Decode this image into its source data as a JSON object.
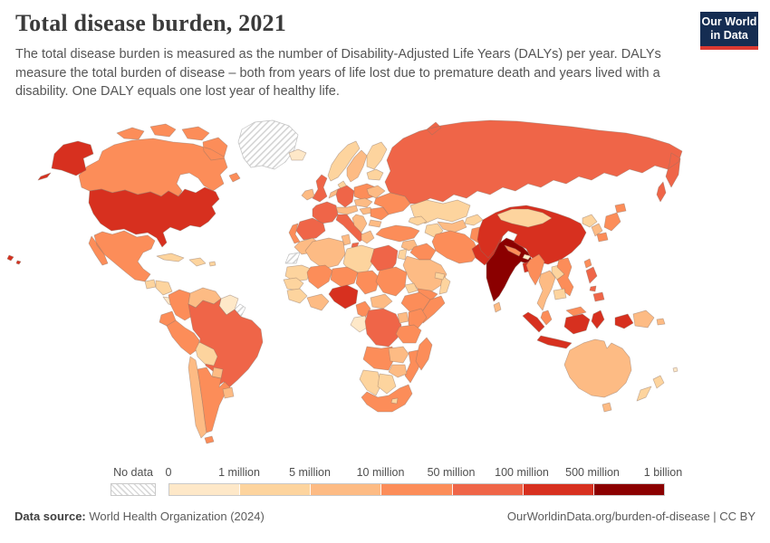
{
  "header": {
    "title": "Total disease burden, 2021",
    "subtitle": "The total disease burden is measured as the number of Disability-Adjusted Life Years (DALYs) per year. DALYs measure the total burden of disease – both from years of life lost due to premature death and years lived with a disability. One DALY equals one lost year of healthy life.",
    "logo": {
      "line1": "Our World",
      "line2": "in Data",
      "bg_color": "#152d52",
      "stripe_color": "#dc3a32"
    }
  },
  "chart_data": {
    "type": "choropleth",
    "subtype": "world-map",
    "title": "Total disease burden, 2021",
    "metric": "Disability-Adjusted Life Years (DALYs) per year",
    "year": 2021,
    "legend": {
      "no_data_label": "No data",
      "tick_labels": [
        "0",
        "1 million",
        "5 million",
        "10 million",
        "50 million",
        "100 million",
        "500 million",
        "1 billion"
      ],
      "bin_ranges": [
        "0–1 million",
        "1–5 million",
        "5–10 million",
        "10–50 million",
        "50–100 million",
        "100–500 million",
        "500 million–1 billion"
      ],
      "bin_colors": [
        "#fee8c8",
        "#fdd49e",
        "#fdbb84",
        "#fc8d59",
        "#ef6548",
        "#d7301f",
        "#8b0000"
      ],
      "no_data_fill": "hatched",
      "position": "bottom"
    },
    "countries": {
      "russia": 5,
      "canada": 4,
      "united-states": 6,
      "greenland": "no-data",
      "iceland": 1,
      "mexico": 4,
      "guatemala": 2,
      "honduras-nicaragua": 2,
      "costa-rica-panama": 1,
      "cuba": 2,
      "hispaniola": 2,
      "puerto-rico": 2,
      "colombia": 4,
      "venezuela": 3,
      "guyana-suriname": 1,
      "french-guiana": "no-data",
      "brazil": 5,
      "ecuador": 4,
      "peru": 4,
      "bolivia": 2,
      "paraguay": 3,
      "chile": 3,
      "argentina": 4,
      "uruguay": 3,
      "norway": 2,
      "sweden": 3,
      "finland": 2,
      "baltic-states": 2,
      "denmark": 2,
      "united-kingdom": 5,
      "ireland": 3,
      "france": 5,
      "spain": 5,
      "portugal": 4,
      "germany": 5,
      "benelux": 3,
      "alpine-states": 3,
      "italy": 5,
      "poland": 4,
      "czechia-slovakia": 3,
      "hungary": 3,
      "romania": 4,
      "bulgaria": 3,
      "balkans": 3,
      "greece": 3,
      "ukraine": 4,
      "belarus": 3,
      "kazakhstan": 2,
      "uzbekistan": 3,
      "turkmenistan": 2,
      "kyrgyzstan-tajikistan": 2,
      "caucasus": 2,
      "turkey": 4,
      "syria": 3,
      "iraq": 4,
      "iran": 4,
      "saudi-arabia": 3,
      "jordan-israel": 2,
      "yemen": 4,
      "oman": 2,
      "uae-qatar": 2,
      "afghanistan": 4,
      "pakistan": 6,
      "india": 7,
      "nepal": 4,
      "bhutan": 1,
      "bangladesh": 6,
      "sri-lanka": 3,
      "china": 6,
      "mongolia": 2,
      "taiwan": 4,
      "north-korea": 2,
      "south-korea": 3,
      "japan": 4,
      "myanmar": 4,
      "thailand": 3,
      "laos": 2,
      "vietnam": 4,
      "cambodia": 2,
      "malaysia": 4,
      "philippines": 5,
      "indonesia": 6,
      "papua-new-guinea": 3,
      "australia": 3,
      "new-zealand": 2,
      "fiji": 1,
      "morocco": 3,
      "western-sahara": "no-data",
      "algeria": 3,
      "tunisia": 3,
      "libya": 2,
      "egypt": 5,
      "mauritania": 2,
      "mali": 4,
      "niger": 4,
      "chad": 4,
      "sudan": 4,
      "eritrea": 2,
      "senegal-gambia": 2,
      "guinea-region": 2,
      "cote-divoire-ghana": 3,
      "nigeria": 6,
      "cameroon": 4,
      "central-african-republic": 3,
      "ethiopia": 4,
      "somalia": 4,
      "gabon-congo": 1,
      "dr-congo": 5,
      "uganda": 3,
      "kenya": 4,
      "tanzania": 4,
      "angola": 4,
      "zambia": 3,
      "mozambique": 4,
      "zimbabwe": 3,
      "namibia": 2,
      "botswana": 2,
      "south-africa": 4,
      "lesotho": 2,
      "madagascar": 4
    }
  },
  "footer": {
    "datasource_label": "Data source:",
    "datasource_value": " World Health Organization (2024)",
    "right_text": "OurWorldinData.org/burden-of-disease | CC BY"
  }
}
